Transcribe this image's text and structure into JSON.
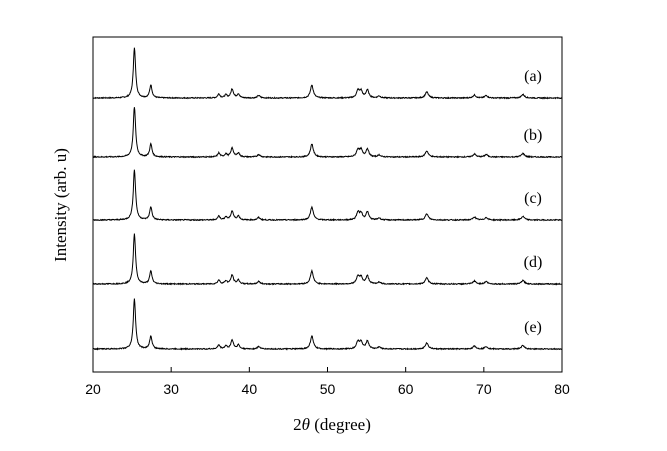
{
  "chart_data": {
    "type": "line",
    "xlabel_prefix": "2",
    "xlabel_symbol": "θ",
    "xlabel_suffix": " (degree)",
    "ylabel": "Intensity  (arb. u)",
    "xlim": [
      20,
      80
    ],
    "xticks": [
      20,
      30,
      40,
      50,
      60,
      70,
      80
    ],
    "y_ticks_shown": false,
    "grid": false,
    "baseline_noise": 0.01,
    "peaks": [
      {
        "x": 25.3,
        "height": 1.0,
        "width": 0.18
      },
      {
        "x": 27.4,
        "height": 0.26,
        "width": 0.18
      },
      {
        "x": 36.1,
        "height": 0.08,
        "width": 0.18
      },
      {
        "x": 37.0,
        "height": 0.06,
        "width": 0.18
      },
      {
        "x": 37.8,
        "height": 0.18,
        "width": 0.2
      },
      {
        "x": 38.6,
        "height": 0.08,
        "width": 0.18
      },
      {
        "x": 41.2,
        "height": 0.05,
        "width": 0.2
      },
      {
        "x": 48.0,
        "height": 0.26,
        "width": 0.22
      },
      {
        "x": 53.9,
        "height": 0.15,
        "width": 0.22
      },
      {
        "x": 54.3,
        "height": 0.13,
        "width": 0.2
      },
      {
        "x": 55.1,
        "height": 0.16,
        "width": 0.22
      },
      {
        "x": 56.6,
        "height": 0.04,
        "width": 0.2
      },
      {
        "x": 62.7,
        "height": 0.12,
        "width": 0.24
      },
      {
        "x": 68.8,
        "height": 0.06,
        "width": 0.22
      },
      {
        "x": 70.3,
        "height": 0.05,
        "width": 0.22
      },
      {
        "x": 75.0,
        "height": 0.07,
        "width": 0.24
      }
    ],
    "series": [
      {
        "name": "(a)"
      },
      {
        "name": "(b)"
      },
      {
        "name": "(c)"
      },
      {
        "name": "(d)"
      },
      {
        "name": "(e)"
      }
    ]
  }
}
